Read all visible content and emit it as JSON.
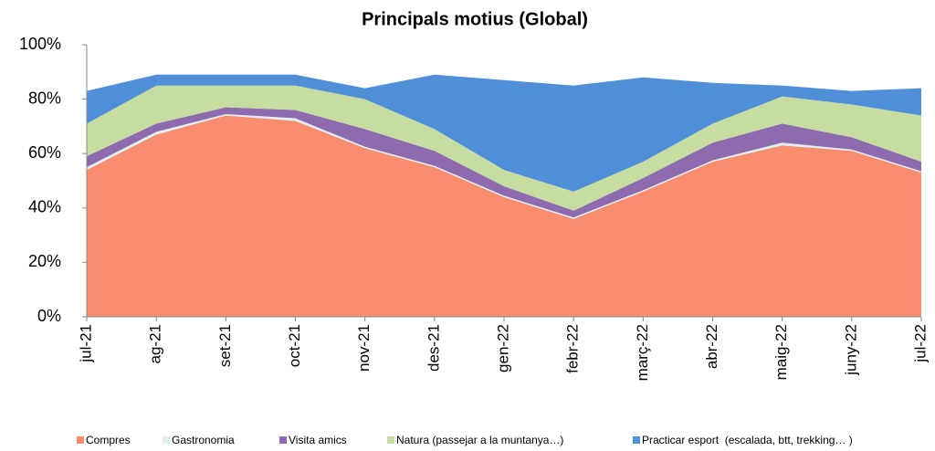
{
  "chart_data": {
    "type": "area",
    "stacked": true,
    "title": "Principals motius (Global)",
    "categories": [
      "jul-21",
      "ag-21",
      "set-21",
      "oct-21",
      "nov-21",
      "des-21",
      "gen-22",
      "febr-22",
      "març-22",
      "abr-22",
      "maig-22",
      "juny-22",
      "jul-22"
    ],
    "series": [
      {
        "name": "Compres",
        "color": "#f98d6e",
        "values": [
          54,
          67,
          74,
          72,
          62,
          55,
          44,
          36,
          46,
          57,
          63,
          61,
          53
        ]
      },
      {
        "name": "Gastronomia",
        "color": "#dff0f5",
        "values": [
          1,
          1,
          0.5,
          1,
          0.5,
          0.5,
          0.5,
          0.5,
          0.5,
          0.5,
          1,
          0.5,
          0.5
        ]
      },
      {
        "name": "Visita amics",
        "color": "#8e6bae",
        "values": [
          4,
          3,
          2.5,
          3,
          6.5,
          5.5,
          3.5,
          2.5,
          4.5,
          6.5,
          7,
          4.5,
          3.5
        ]
      },
      {
        "name": "Natura (passejar a la muntanya…)",
        "color": "#c6dca0",
        "values": [
          12,
          14,
          8,
          9,
          11,
          8,
          6,
          7,
          6,
          7,
          10,
          12,
          17
        ]
      },
      {
        "name": "Practicar esport  (escalada, btt, trekking… )",
        "color": "#4f8fd8",
        "values": [
          12,
          4,
          4,
          4,
          4,
          20,
          33,
          39,
          31,
          15,
          4,
          5,
          10
        ]
      }
    ],
    "ylim": [
      0,
      100
    ],
    "yticks": [
      {
        "value": 0,
        "label": "0%"
      },
      {
        "value": 20,
        "label": "20%"
      },
      {
        "value": 40,
        "label": "40%"
      },
      {
        "value": 60,
        "label": "60%"
      },
      {
        "value": 80,
        "label": "80%"
      },
      {
        "value": 100,
        "label": "100%"
      }
    ],
    "grid": false,
    "legend": "bottom"
  }
}
